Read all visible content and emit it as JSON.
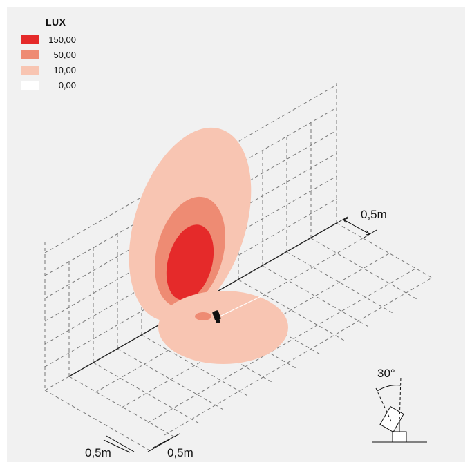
{
  "legend": {
    "title": "LUX",
    "items": [
      {
        "label": "150,00",
        "color": "#e52a2a"
      },
      {
        "label": "50,00",
        "color": "#ee8b73"
      },
      {
        "label": "10,00",
        "color": "#f8c5b2"
      },
      {
        "label": "0,00",
        "color": "#ffffff"
      }
    ]
  },
  "dimensions": {
    "grid_right": "0,5m",
    "grid_bottom_left": "0,5m",
    "grid_bottom_right": "0,5m",
    "tilt_angle": "30°"
  }
}
